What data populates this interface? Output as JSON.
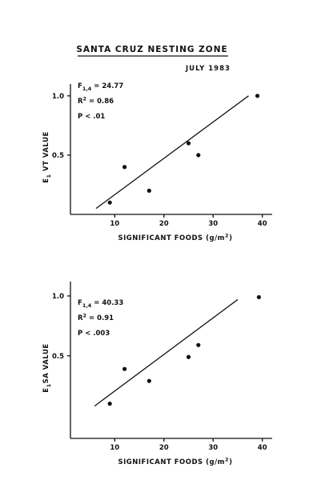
{
  "figure": {
    "title": "SANTA CRUZ NESTING ZONE",
    "subtitle": "JULY 1983"
  },
  "chart_data": [
    {
      "type": "scatter",
      "color": "#111111",
      "x": [
        9,
        12,
        17,
        25,
        27,
        39
      ],
      "values": [
        0.1,
        0.4,
        0.2,
        0.6,
        0.5,
        1
      ],
      "fit": {
        "x": [
          6.2,
          37.2
        ],
        "y": [
          0.05,
          1
        ]
      },
      "xlim": [
        1,
        42
      ],
      "ylim": [
        0,
        1.1
      ],
      "xticks": [
        10,
        20,
        30,
        40
      ],
      "yticks": [
        0.5,
        {
          "value": 1,
          "label": "1.0"
        }
      ],
      "y_label": [
        {
          "text": "E"
        },
        {
          "text": "1",
          "shift": "sub"
        },
        {
          "text": " VT  VALUE"
        }
      ],
      "x_label": [
        {
          "text": "SIGNIFICANT  FOODS  (g/m"
        },
        {
          "text": "2",
          "shift": "super"
        },
        {
          "text": ")"
        }
      ],
      "annotations": [
        [
          {
            "text": "F"
          },
          {
            "text": "1,4",
            "shift": "sub"
          },
          {
            "text": " = 24.77"
          }
        ],
        [
          {
            "text": "R"
          },
          {
            "text": "2",
            "shift": "super"
          },
          {
            "text": " = 0.86"
          }
        ],
        [
          {
            "text": "P  < .01"
          }
        ]
      ]
    },
    {
      "type": "scatter",
      "color": "#111111",
      "x": [
        9,
        12,
        17,
        25,
        27,
        39.3
      ],
      "values": [
        0.1,
        0.39,
        0.29,
        0.49,
        0.59,
        0.99
      ],
      "fit": {
        "x": [
          5.9,
          35
        ],
        "y": [
          0.08,
          0.97
        ]
      },
      "xlim": [
        1,
        42
      ],
      "ylim": [
        -0.19,
        1.12
      ],
      "xticks": [
        10,
        20,
        30,
        40
      ],
      "yticks": [
        0.5,
        {
          "value": 1,
          "label": "1.0"
        }
      ],
      "y_label": [
        {
          "text": "E"
        },
        {
          "text": "1",
          "shift": "sub"
        },
        {
          "text": "SA  VALUE"
        }
      ],
      "x_label": [
        {
          "text": "SIGNIFICANT  FOODS   (g/m"
        },
        {
          "text": "2",
          "shift": "super"
        },
        {
          "text": ")"
        }
      ],
      "annotations": [
        [
          {
            "text": "F"
          },
          {
            "text": "1,4",
            "shift": "sub"
          },
          {
            "text": " = 40.33"
          }
        ],
        [
          {
            "text": "R"
          },
          {
            "text": "2",
            "shift": "super"
          },
          {
            "text": " = 0.91"
          }
        ],
        [
          {
            "text": "P  < .003"
          }
        ]
      ]
    }
  ]
}
